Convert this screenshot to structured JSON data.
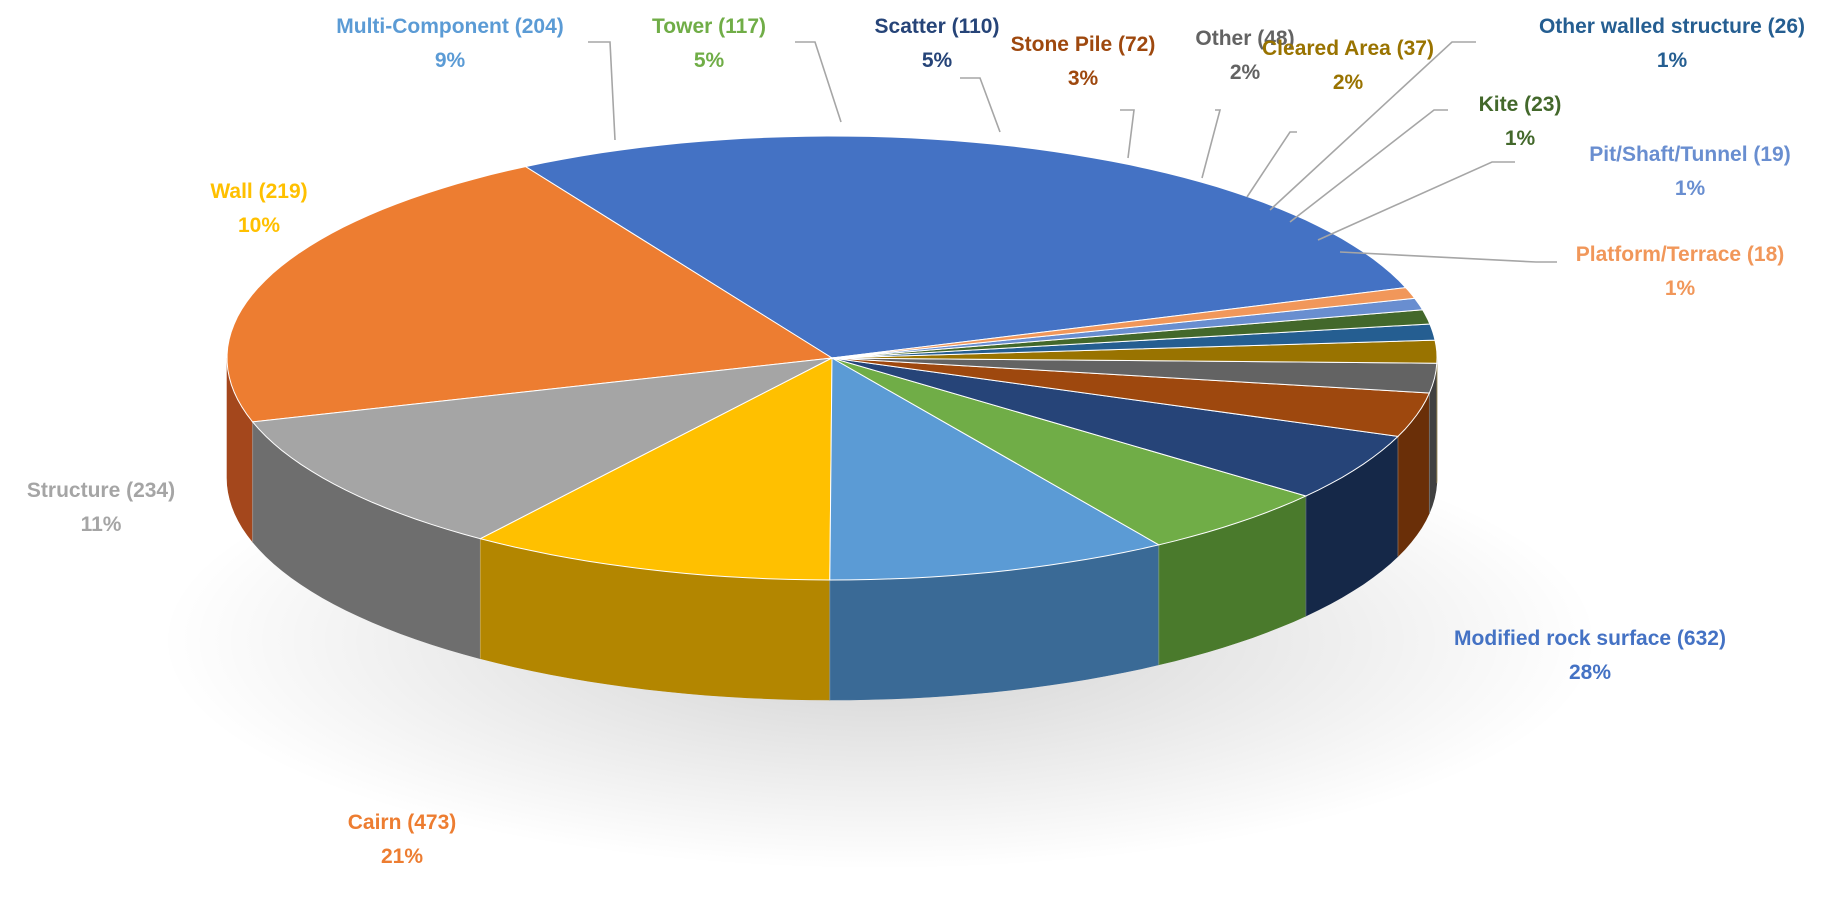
{
  "chart_data": {
    "type": "pie",
    "style": "3d",
    "title": "",
    "legend": "none",
    "slices": [
      {
        "label": "Modified rock surface (632)",
        "value": 632,
        "percent": "28%",
        "color": "#4472C4",
        "dark": "#1E2B4F",
        "text_color": "#4472C4"
      },
      {
        "label": "Cairn (473)",
        "value": 473,
        "percent": "21%",
        "color": "#ED7D31",
        "dark": "#A4471C",
        "text_color": "#ED7D31"
      },
      {
        "label": "Structure (234)",
        "value": 234,
        "percent": "11%",
        "color": "#A5A5A5",
        "dark": "#6E6E6E",
        "text_color": "#A5A5A5"
      },
      {
        "label": "Wall (219)",
        "value": 219,
        "percent": "10%",
        "color": "#FFC000",
        "dark": "#B38600",
        "text_color": "#FFC000"
      },
      {
        "label": "Multi-Component (204)",
        "value": 204,
        "percent": "9%",
        "color": "#5B9BD5",
        "dark": "#3A6A96",
        "text_color": "#5B9BD5"
      },
      {
        "label": "Tower (117)",
        "value": 117,
        "percent": "5%",
        "color": "#70AD47",
        "dark": "#4A7A2C",
        "text_color": "#70AD47"
      },
      {
        "label": "Scatter (110)",
        "value": 110,
        "percent": "5%",
        "color": "#264478",
        "dark": "#152848",
        "text_color": "#264478"
      },
      {
        "label": "Stone Pile (72)",
        "value": 72,
        "percent": "3%",
        "color": "#9E480E",
        "dark": "#6A2F08",
        "text_color": "#9E480E"
      },
      {
        "label": "Other (48)",
        "value": 48,
        "percent": "2%",
        "color": "#636363",
        "dark": "#404040",
        "text_color": "#636363"
      },
      {
        "label": "Cleared Area (37)",
        "value": 37,
        "percent": "2%",
        "color": "#997300",
        "dark": "#664D00",
        "text_color": "#997300"
      },
      {
        "label": "Other walled structure (26)",
        "value": 26,
        "percent": "1%",
        "color": "#255E91",
        "dark": "#163A5A",
        "text_color": "#255E91"
      },
      {
        "label": "Kite (23)",
        "value": 23,
        "percent": "1%",
        "color": "#43682B",
        "dark": "#2B441B",
        "text_color": "#43682B"
      },
      {
        "label": "Pit/Shaft/Tunnel (19)",
        "value": 19,
        "percent": "1%",
        "color": "#698ED0",
        "dark": "#46619A",
        "text_color": "#698ED0"
      },
      {
        "label": "Platform/Terrace (18)",
        "value": 18,
        "percent": "1%",
        "color": "#F1975A",
        "dark": "#B0683A",
        "text_color": "#F1975A"
      }
    ]
  }
}
